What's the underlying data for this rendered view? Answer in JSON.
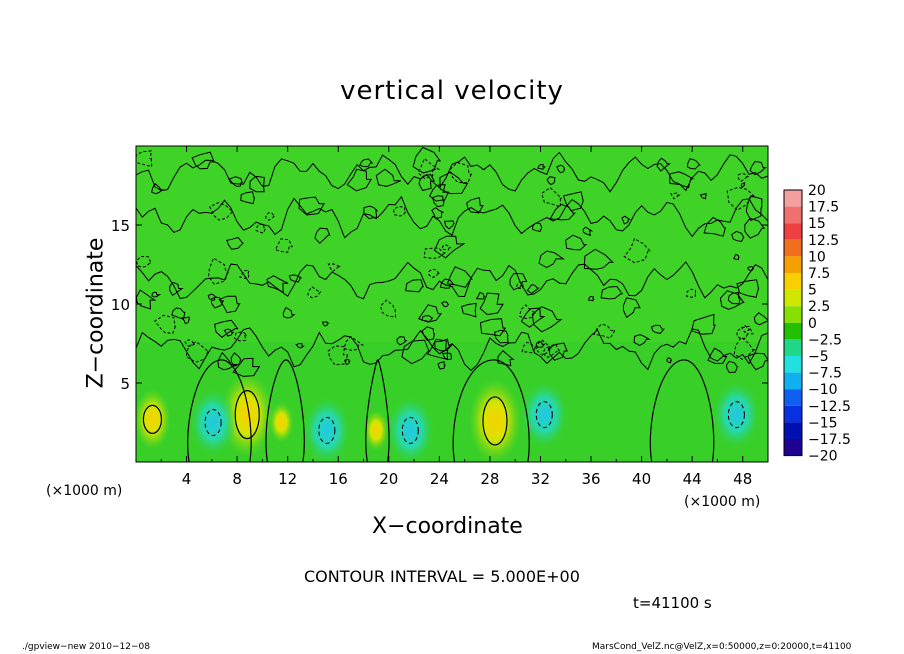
{
  "chart_data": {
    "type": "heatmap",
    "title": "vertical velocity",
    "xlabel": "X−coordinate",
    "ylabel": "Z−coordinate",
    "x_unit_label": "(×1000 m)",
    "xlim": [
      0,
      50
    ],
    "ylim": [
      0,
      20
    ],
    "x_ticks": [
      4,
      8,
      12,
      16,
      20,
      24,
      28,
      32,
      36,
      40,
      44,
      48
    ],
    "y_ticks": [
      5,
      10,
      15
    ],
    "contour_interval_text": "CONTOUR INTERVAL = 5.000E+00",
    "time_text": "t=41100 s",
    "colorbar": {
      "labels": [
        "20",
        "17.5",
        "15",
        "12.5",
        "10",
        "7.5",
        "5",
        "2.5",
        "0",
        "−2.5",
        "−5",
        "−7.5",
        "−10",
        "−12.5",
        "−15",
        "−17.5",
        "−20"
      ],
      "colors": [
        "#f4a0a0",
        "#f07070",
        "#ee4040",
        "#f07020",
        "#f4a000",
        "#f8d000",
        "#d0e800",
        "#88e000",
        "#22c000",
        "#20d888",
        "#20e0e0",
        "#10b0f0",
        "#1060f0",
        "#0830e0",
        "#0010b0",
        "#200090",
        "#6010b0"
      ]
    },
    "features": {
      "updrafts": [
        {
          "x": 1.3,
          "z": 2.7,
          "w": 5
        },
        {
          "x": 8.8,
          "z": 3.0,
          "w": 7.5
        },
        {
          "x": 28.4,
          "z": 2.6,
          "w": 7.5
        },
        {
          "x": 19.0,
          "z": 2.0,
          "w": 2.5
        },
        {
          "x": 11.5,
          "z": 2.5,
          "w": 2.5
        }
      ],
      "downdrafts": [
        {
          "x": 6.1,
          "z": 2.5,
          "w": -5
        },
        {
          "x": 15.1,
          "z": 2.0,
          "w": -5
        },
        {
          "x": 21.7,
          "z": 2.0,
          "w": -5
        },
        {
          "x": 32.3,
          "z": 3.0,
          "w": -5
        },
        {
          "x": 47.5,
          "z": 3.0,
          "w": -5
        }
      ]
    }
  },
  "footer": {
    "left": "./gpview−new  2010−12−08",
    "right": "MarsCond_VelZ.nc@VelZ,x=0:50000,z=0:20000,t=41100"
  }
}
